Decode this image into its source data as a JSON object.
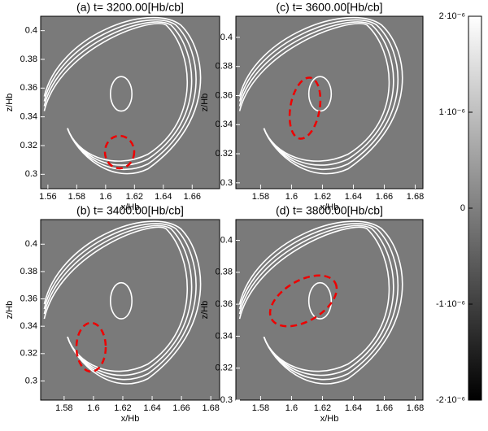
{
  "chart_data": [
    {
      "type": "image",
      "title": "(a) t= 3200.00[Hb/cb]",
      "xlabel": "x/Hb",
      "ylabel": "z/Hb",
      "xlim": [
        1.555,
        1.679
      ],
      "ylim": [
        0.29,
        0.41
      ],
      "xticks": [
        1.56,
        1.58,
        1.6,
        1.62,
        1.64,
        1.66
      ],
      "yticks": [
        0.3,
        0.32,
        0.34,
        0.36,
        0.38,
        0.4
      ]
    },
    {
      "type": "image",
      "title": "(c) t= 3600.00[Hb/cb]",
      "xlabel": "x/Hb",
      "ylabel": "z/Hb",
      "xlim": [
        1.564,
        1.685
      ],
      "ylim": [
        0.296,
        0.4145
      ],
      "xticks": [
        1.58,
        1.6,
        1.62,
        1.64,
        1.66,
        1.68
      ],
      "yticks": [
        0.3,
        0.32,
        0.34,
        0.36,
        0.38,
        0.4
      ]
    },
    {
      "type": "image",
      "title": "(b) t= 3400.00[Hb/cb]",
      "xlabel": "x/Hb",
      "ylabel": "z/Hb",
      "xlim": [
        1.564,
        1.686
      ],
      "ylim": [
        0.286,
        0.418
      ],
      "xticks": [
        1.58,
        1.6,
        1.62,
        1.64,
        1.66,
        1.68
      ],
      "yticks": [
        0.3,
        0.32,
        0.34,
        0.36,
        0.38,
        0.4
      ]
    },
    {
      "type": "image",
      "title": "(d) t= 3800.00[Hb/cb]",
      "xlabel": "x/Hb",
      "ylabel": "z/Hb",
      "xlim": [
        1.564,
        1.685
      ],
      "ylim": [
        0.3,
        0.413
      ],
      "xticks": [
        1.58,
        1.6,
        1.62,
        1.64,
        1.66,
        1.68
      ],
      "yticks": [
        0.3,
        0.32,
        0.34,
        0.36,
        0.38,
        0.4
      ]
    }
  ],
  "colorbar": {
    "lim": [
      -2e-06,
      2e-06
    ],
    "ticks": [
      {
        "value": 2e-06,
        "label": "2·10⁻⁶"
      },
      {
        "value": 1e-06,
        "label": "1·10⁻⁶"
      },
      0,
      {
        "value": -1e-06,
        "label": "-1·10⁻⁶"
      },
      {
        "value": -2e-06,
        "label": "-2·10⁻⁶"
      }
    ]
  }
}
